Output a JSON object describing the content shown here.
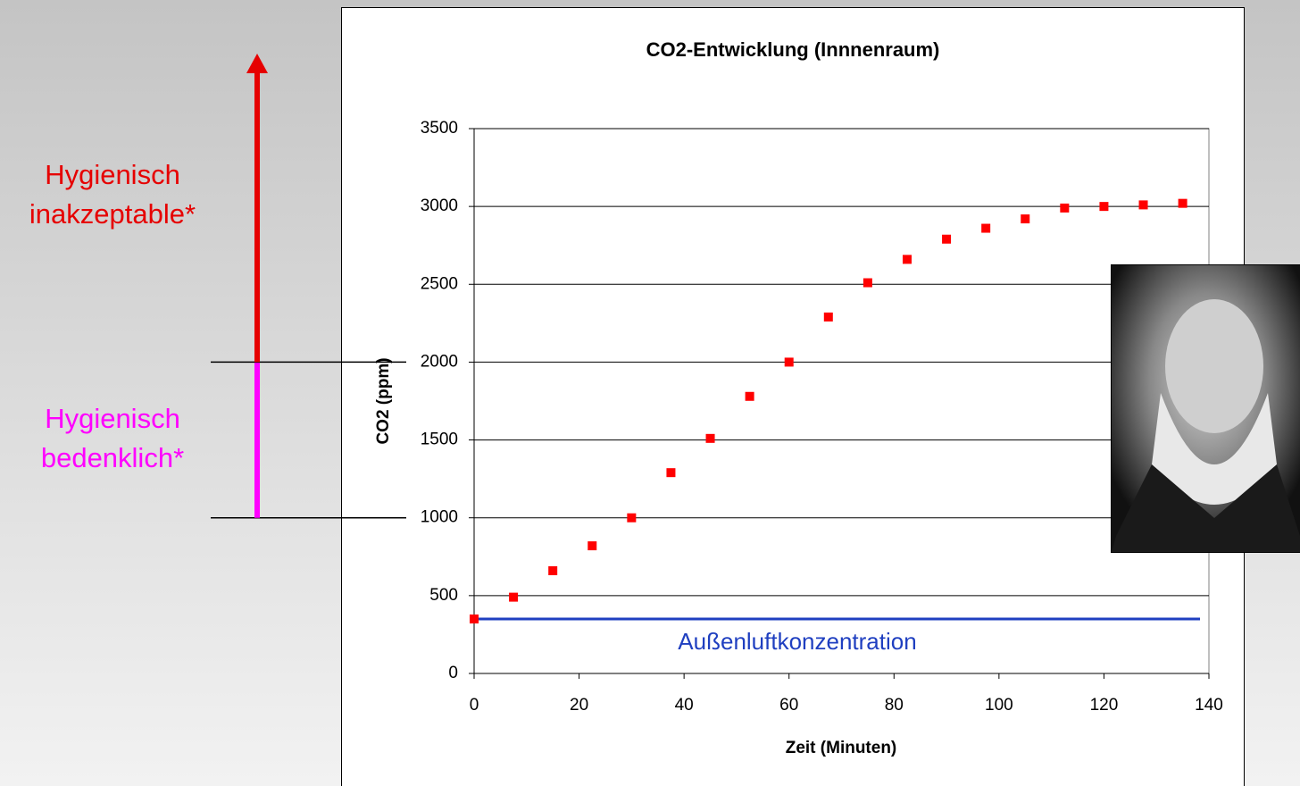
{
  "chart_data": {
    "type": "scatter",
    "title": "CO2-Entwicklung (Innnenraum)",
    "x_label": "Zeit (Minuten)",
    "y_label": "CO2 (ppm)",
    "x": [
      0,
      7.5,
      15,
      22.5,
      30,
      37.5,
      45,
      52.5,
      60,
      67.5,
      75,
      82.5,
      90,
      97.5,
      105,
      112.5,
      120,
      127.5,
      135
    ],
    "values": [
      350,
      490,
      660,
      820,
      1000,
      1290,
      1510,
      1780,
      2000,
      2290,
      2510,
      2660,
      2790,
      2860,
      2920,
      2990,
      3000,
      3010,
      3020
    ],
    "color": "#ff0000",
    "xlim": [
      0,
      140
    ],
    "xticks": [
      0,
      20,
      40,
      60,
      80,
      100,
      120,
      140
    ],
    "ylim": [
      0,
      3500
    ],
    "yticks": [
      0,
      500,
      1000,
      1500,
      2000,
      2500,
      3000,
      3500
    ],
    "grid": true,
    "reference_line": {
      "label": "Außenluftkonzentration",
      "value": 350,
      "color": "#1f3fc0"
    },
    "zones": [
      {
        "label_lines": [
          "Hygienisch",
          "bedenklich*"
        ],
        "from": 1000,
        "to": 2000,
        "color": "#ff00ff"
      },
      {
        "label_lines": [
          "Hygienisch",
          "inakzeptable*"
        ],
        "from": 2000,
        "color": "#e60000"
      }
    ]
  }
}
